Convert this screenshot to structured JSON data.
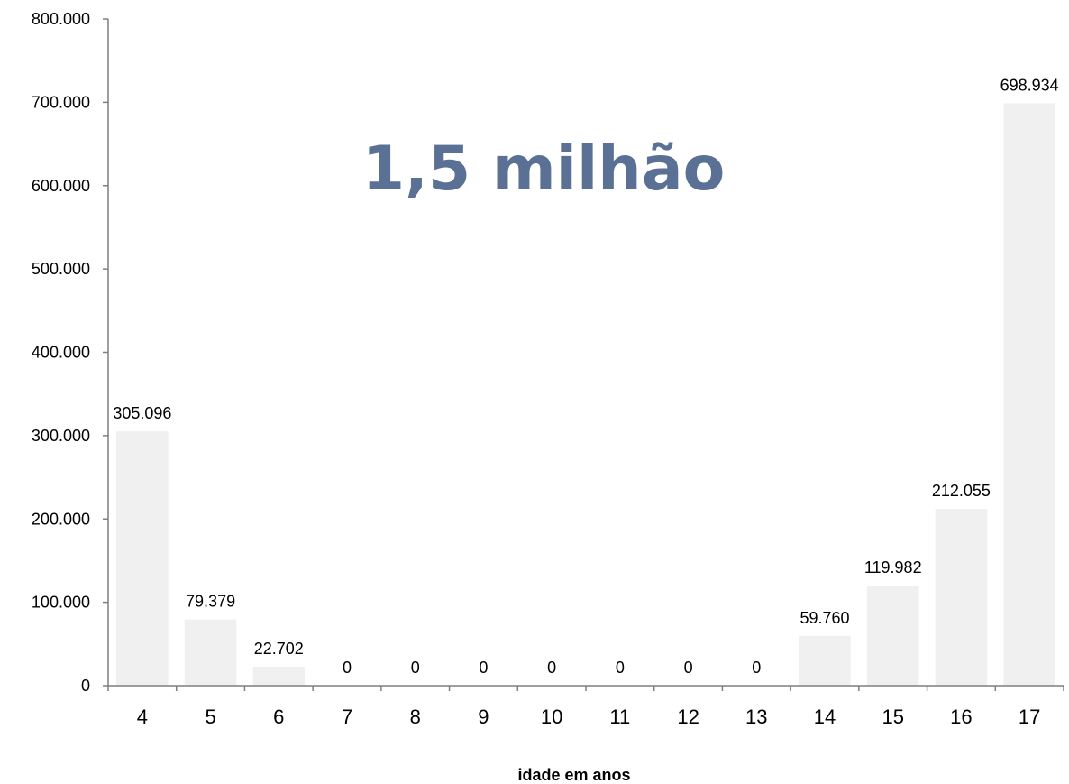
{
  "chart_data": {
    "type": "bar",
    "categories": [
      "4",
      "5",
      "6",
      "7",
      "8",
      "9",
      "10",
      "11",
      "12",
      "13",
      "14",
      "15",
      "16",
      "17"
    ],
    "values": [
      305096,
      79379,
      22702,
      0,
      0,
      0,
      0,
      0,
      0,
      0,
      59760,
      119982,
      212055,
      698934
    ],
    "data_labels": [
      "305.096",
      "79.379",
      "22.702",
      "0",
      "0",
      "0",
      "0",
      "0",
      "0",
      "0",
      "59.760",
      "119.982",
      "212.055",
      "698.934"
    ],
    "y_ticks": [
      0,
      100000,
      200000,
      300000,
      400000,
      500000,
      600000,
      700000,
      800000
    ],
    "y_tick_labels": [
      "0",
      "100.000",
      "200.000",
      "300.000",
      "400.000",
      "500.000",
      "600.000",
      "700.000",
      "800.000"
    ],
    "ylim": [
      0,
      800000
    ],
    "xlabel": "idade em anos",
    "ylabel": "",
    "title": "",
    "annotation": "1,5 milhão",
    "grid": false,
    "legend": "none",
    "colors": {
      "bar": "#f0f0f0",
      "axis": "#7f7f7f",
      "annotation": "#5a7094"
    }
  }
}
